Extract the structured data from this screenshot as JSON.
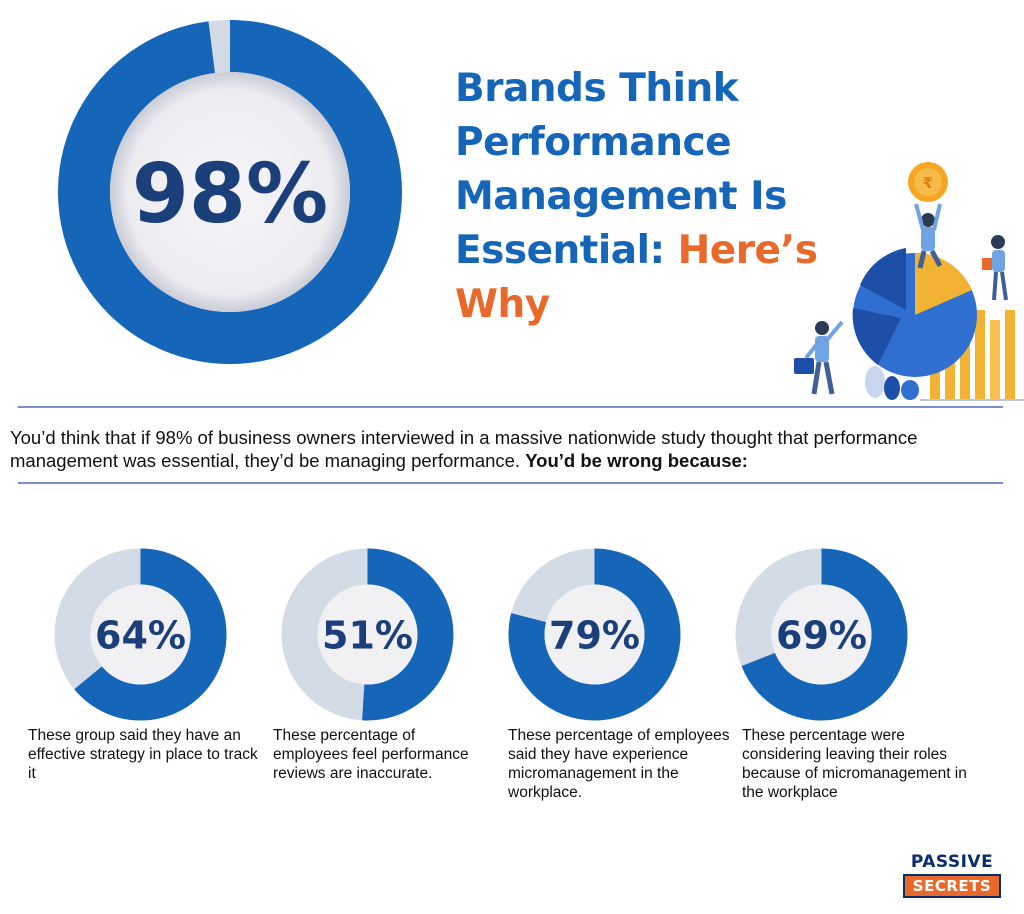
{
  "title": {
    "line1": "Brands Think",
    "line2": "Performance",
    "line3": "Management Is",
    "line4_blue": "Essential: ",
    "line4_orange": "Here’s",
    "line5": "Why"
  },
  "intro": {
    "text": "You’d think that if 98% of business owners interviewed in a massive nationwide study thought that performance management was essential, they’d be managing performance. ",
    "bold": "You’d be wrong because:"
  },
  "colors": {
    "primary": "#1565b8",
    "track": "#d3dbe6",
    "accent": "#e8692a",
    "center": "#f1f1f4",
    "text_dark": "#1b3f7a"
  },
  "chart_data": [
    {
      "type": "pie",
      "variant": "donut",
      "value": 98,
      "label": "98%"
    },
    {
      "type": "pie",
      "variant": "donut",
      "value": 64,
      "label": "64%",
      "caption": "These group said they have an effective strategy in place to track it"
    },
    {
      "type": "pie",
      "variant": "donut",
      "value": 51,
      "label": "51%",
      "caption": "These percentage of employees feel performance reviews are inaccurate."
    },
    {
      "type": "pie",
      "variant": "donut",
      "value": 79,
      "label": "79%",
      "caption": "These percentage of employees said they have experience micromanagement in the workplace."
    },
    {
      "type": "pie",
      "variant": "donut",
      "value": 69,
      "label": "69%",
      "caption": "These percentage were considering leaving their roles because of micromanagement in the workplace"
    }
  ],
  "logo": {
    "top": "PASSIVE",
    "bottom": "SECRETS"
  },
  "illustration": {
    "icon": "business-growth-illustration"
  }
}
